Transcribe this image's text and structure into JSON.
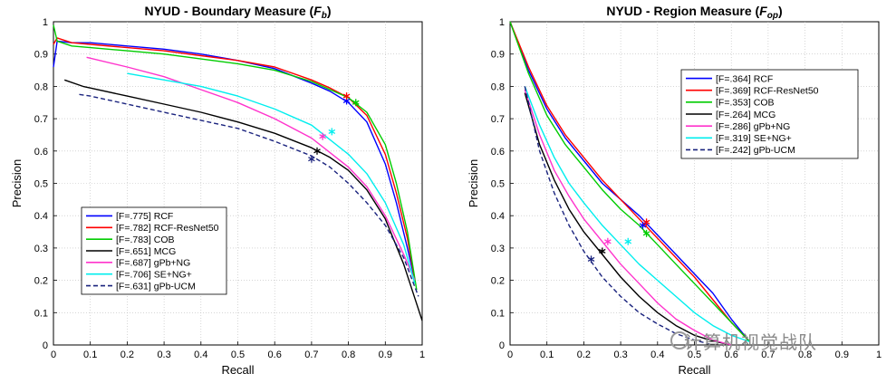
{
  "watermark": "计算机视觉战队",
  "chart_data": [
    {
      "type": "line",
      "title_main": "NYUD - Boundary Measure (",
      "title_sym": "F",
      "title_sub": "b",
      "title_end": ")",
      "xlabel": "Recall",
      "ylabel": "Precision",
      "xlim": [
        0,
        1
      ],
      "ylim": [
        0,
        1
      ],
      "xticks": [
        "0",
        "0.1",
        "0.2",
        "0.3",
        "0.4",
        "0.5",
        "0.6",
        "0.7",
        "0.8",
        "0.9",
        "1"
      ],
      "yticks": [
        "0",
        "0.1",
        "0.2",
        "0.3",
        "0.4",
        "0.5",
        "0.6",
        "0.7",
        "0.8",
        "0.9",
        "1"
      ],
      "grid": true,
      "legend_position": "bottom-left",
      "series": [
        {
          "name": "[F=.775] RCF",
          "color": "#0000ff",
          "dash": false,
          "x": [
            0.0,
            0.01,
            0.05,
            0.1,
            0.2,
            0.3,
            0.4,
            0.5,
            0.6,
            0.7,
            0.75,
            0.8,
            0.85,
            0.9,
            0.93,
            0.96,
            0.98
          ],
          "y": [
            0.86,
            0.94,
            0.935,
            0.935,
            0.925,
            0.915,
            0.9,
            0.88,
            0.855,
            0.81,
            0.785,
            0.75,
            0.69,
            0.56,
            0.44,
            0.3,
            0.2
          ],
          "marker": [
            0.795,
            0.755
          ]
        },
        {
          "name": "[F=.782] RCF-ResNet50",
          "color": "#ff0000",
          "dash": false,
          "x": [
            0.0,
            0.01,
            0.05,
            0.1,
            0.2,
            0.3,
            0.4,
            0.5,
            0.6,
            0.7,
            0.75,
            0.8,
            0.85,
            0.9,
            0.93,
            0.96,
            0.98
          ],
          "y": [
            0.93,
            0.95,
            0.935,
            0.93,
            0.92,
            0.91,
            0.895,
            0.88,
            0.86,
            0.82,
            0.795,
            0.765,
            0.71,
            0.59,
            0.47,
            0.33,
            0.2
          ],
          "marker": [
            0.795,
            0.77
          ]
        },
        {
          "name": "[F=.783] COB",
          "color": "#00cc00",
          "dash": false,
          "x": [
            0.0,
            0.01,
            0.05,
            0.1,
            0.2,
            0.3,
            0.4,
            0.5,
            0.6,
            0.7,
            0.75,
            0.8,
            0.85,
            0.9,
            0.93,
            0.96,
            0.985
          ],
          "y": [
            0.99,
            0.94,
            0.925,
            0.92,
            0.91,
            0.9,
            0.885,
            0.87,
            0.85,
            0.815,
            0.79,
            0.765,
            0.72,
            0.62,
            0.5,
            0.35,
            0.17
          ],
          "marker": [
            0.82,
            0.75
          ]
        },
        {
          "name": "[F=.651] MCG",
          "color": "#000000",
          "dash": false,
          "x": [
            0.03,
            0.08,
            0.1,
            0.2,
            0.3,
            0.4,
            0.5,
            0.6,
            0.7,
            0.75,
            0.8,
            0.85,
            0.9,
            0.95,
            1.0
          ],
          "y": [
            0.82,
            0.8,
            0.795,
            0.77,
            0.745,
            0.72,
            0.69,
            0.655,
            0.61,
            0.58,
            0.54,
            0.48,
            0.39,
            0.25,
            0.075
          ],
          "marker": [
            0.715,
            0.6
          ]
        },
        {
          "name": "[F=.687] gPb+NG",
          "color": "#ff33cc",
          "dash": false,
          "x": [
            0.09,
            0.2,
            0.3,
            0.4,
            0.5,
            0.6,
            0.7,
            0.8,
            0.85,
            0.9,
            0.95,
            0.98
          ],
          "y": [
            0.89,
            0.86,
            0.83,
            0.79,
            0.75,
            0.7,
            0.64,
            0.55,
            0.49,
            0.4,
            0.28,
            0.2
          ],
          "marker": [
            0.73,
            0.645
          ]
        },
        {
          "name": "[F=.706] SE+NG+",
          "color": "#00eeee",
          "dash": false,
          "x": [
            0.2,
            0.3,
            0.4,
            0.5,
            0.6,
            0.7,
            0.8,
            0.85,
            0.9,
            0.95,
            0.98
          ],
          "y": [
            0.84,
            0.82,
            0.8,
            0.77,
            0.73,
            0.68,
            0.59,
            0.53,
            0.44,
            0.31,
            0.19
          ],
          "marker": [
            0.755,
            0.66
          ]
        },
        {
          "name": "[F=.631] gPb-UCM",
          "color": "#1a237e",
          "dash": true,
          "x": [
            0.07,
            0.1,
            0.2,
            0.3,
            0.4,
            0.5,
            0.6,
            0.7,
            0.75,
            0.8,
            0.85,
            0.9,
            0.95,
            0.99
          ],
          "y": [
            0.775,
            0.77,
            0.745,
            0.72,
            0.695,
            0.67,
            0.63,
            0.585,
            0.55,
            0.5,
            0.44,
            0.37,
            0.27,
            0.15
          ],
          "marker": [
            0.7,
            0.575
          ]
        }
      ]
    },
    {
      "type": "line",
      "title_main": "NYUD - Region Measure (",
      "title_sym": "F",
      "title_sub": "op",
      "title_end": ")",
      "xlabel": "Recall",
      "ylabel": "Precision",
      "xlim": [
        0,
        1
      ],
      "ylim": [
        0,
        1
      ],
      "xticks": [
        "0",
        "0.1",
        "0.2",
        "0.3",
        "0.4",
        "0.5",
        "0.6",
        "0.7",
        "0.8",
        "0.9",
        "1"
      ],
      "yticks": [
        "0",
        "0.1",
        "0.2",
        "0.3",
        "0.4",
        "0.5",
        "0.6",
        "0.7",
        "0.8",
        "0.9",
        "1"
      ],
      "grid": true,
      "legend_position": "top-right",
      "series": [
        {
          "name": "[F=.364] RCF",
          "color": "#0000ff",
          "dash": false,
          "x": [
            0.0,
            0.05,
            0.1,
            0.15,
            0.2,
            0.25,
            0.3,
            0.35,
            0.4,
            0.45,
            0.5,
            0.55,
            0.6,
            0.65
          ],
          "y": [
            1.0,
            0.85,
            0.73,
            0.64,
            0.57,
            0.5,
            0.45,
            0.4,
            0.34,
            0.28,
            0.22,
            0.16,
            0.08,
            0.01
          ],
          "marker": [
            0.36,
            0.37
          ]
        },
        {
          "name": "[F=.369] RCF-ResNet50",
          "color": "#ff0000",
          "dash": false,
          "x": [
            0.0,
            0.05,
            0.1,
            0.15,
            0.2,
            0.25,
            0.3,
            0.35,
            0.4,
            0.45,
            0.5,
            0.55,
            0.6,
            0.65
          ],
          "y": [
            1.0,
            0.86,
            0.74,
            0.65,
            0.58,
            0.51,
            0.45,
            0.39,
            0.33,
            0.27,
            0.21,
            0.14,
            0.07,
            0.01
          ],
          "marker": [
            0.37,
            0.38
          ]
        },
        {
          "name": "[F=.353] COB",
          "color": "#00cc00",
          "dash": false,
          "x": [
            0.0,
            0.05,
            0.1,
            0.15,
            0.2,
            0.25,
            0.3,
            0.35,
            0.4,
            0.45,
            0.5,
            0.55,
            0.6,
            0.65
          ],
          "y": [
            1.0,
            0.84,
            0.71,
            0.62,
            0.55,
            0.48,
            0.42,
            0.37,
            0.31,
            0.25,
            0.19,
            0.13,
            0.07,
            0.01
          ],
          "marker": [
            0.37,
            0.345
          ]
        },
        {
          "name": "[F=.264] MCG",
          "color": "#000000",
          "dash": false,
          "x": [
            0.04,
            0.08,
            0.12,
            0.16,
            0.2,
            0.25,
            0.3,
            0.35,
            0.4,
            0.45,
            0.5,
            0.55,
            0.6
          ],
          "y": [
            0.78,
            0.62,
            0.51,
            0.42,
            0.35,
            0.28,
            0.21,
            0.15,
            0.1,
            0.06,
            0.03,
            0.012,
            0.0
          ],
          "marker": [
            0.25,
            0.29
          ]
        },
        {
          "name": "[F=.286] gPb+NG",
          "color": "#ff33cc",
          "dash": false,
          "x": [
            0.04,
            0.08,
            0.12,
            0.16,
            0.2,
            0.25,
            0.3,
            0.35,
            0.4,
            0.45,
            0.5,
            0.55,
            0.6
          ],
          "y": [
            0.79,
            0.65,
            0.54,
            0.46,
            0.39,
            0.32,
            0.25,
            0.19,
            0.13,
            0.08,
            0.045,
            0.015,
            0.0
          ],
          "marker": [
            0.265,
            0.32
          ]
        },
        {
          "name": "[F=.319] SE+NG+",
          "color": "#00eeee",
          "dash": false,
          "x": [
            0.04,
            0.08,
            0.12,
            0.16,
            0.2,
            0.25,
            0.3,
            0.35,
            0.4,
            0.45,
            0.5,
            0.55,
            0.6,
            0.65
          ],
          "y": [
            0.8,
            0.68,
            0.58,
            0.5,
            0.44,
            0.37,
            0.31,
            0.25,
            0.2,
            0.15,
            0.1,
            0.06,
            0.03,
            0.01
          ],
          "marker": [
            0.32,
            0.32
          ]
        },
        {
          "name": "[F=.242] gPb-UCM",
          "color": "#1a237e",
          "dash": true,
          "x": [
            0.04,
            0.08,
            0.12,
            0.16,
            0.2,
            0.25,
            0.3,
            0.35,
            0.4,
            0.45,
            0.5,
            0.55
          ],
          "y": [
            0.8,
            0.6,
            0.47,
            0.37,
            0.29,
            0.21,
            0.15,
            0.1,
            0.065,
            0.035,
            0.015,
            0.0
          ],
          "marker": [
            0.22,
            0.265
          ]
        }
      ]
    }
  ]
}
